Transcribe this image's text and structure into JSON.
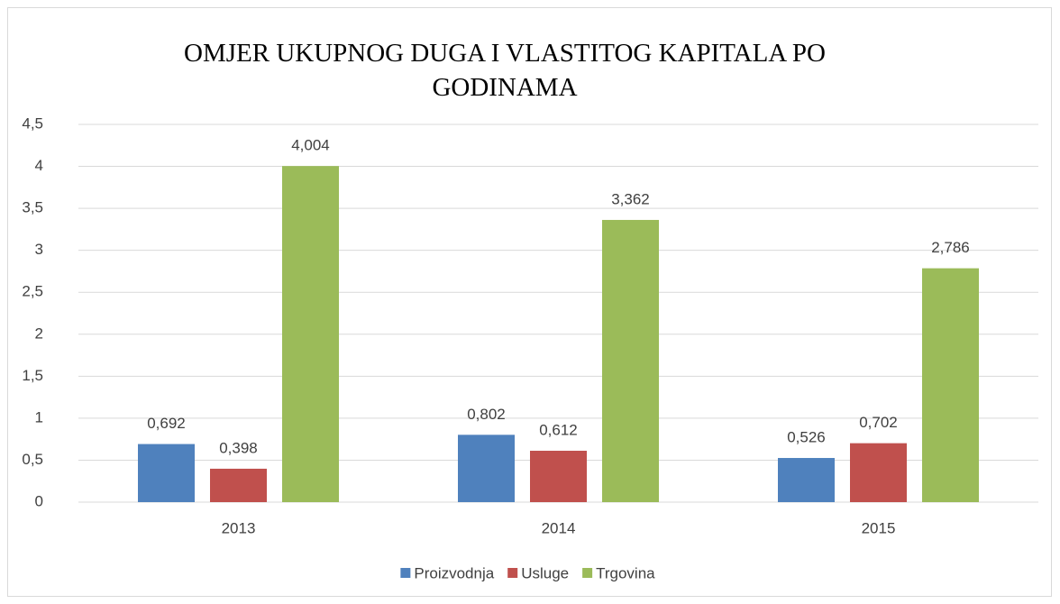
{
  "chart_data": {
    "type": "bar",
    "title": "OMJER UKUPNOG DUGA I VLASTITOG KAPITALA PO GODINAMA",
    "categories": [
      "2013",
      "2014",
      "2015"
    ],
    "series": [
      {
        "name": "Proizvodnja",
        "color": "#4f81bd",
        "values": [
          0.692,
          0.802,
          0.526
        ],
        "value_labels": [
          "0,692",
          "0,802",
          "0,526"
        ]
      },
      {
        "name": "Usluge",
        "color": "#c0504d",
        "values": [
          0.398,
          0.612,
          0.702
        ],
        "value_labels": [
          "0,398",
          "0,612",
          "0,702"
        ]
      },
      {
        "name": "Trgovina",
        "color": "#9bbb59",
        "values": [
          4.004,
          3.362,
          2.786
        ],
        "value_labels": [
          "4,004",
          "3,362",
          "2,786"
        ]
      }
    ],
    "ylim": [
      0,
      4.5
    ],
    "yticks": [
      0,
      {
        "value": 0.5,
        "label": "0,5"
      },
      1,
      {
        "value": 1.5,
        "label": "1,5"
      },
      2,
      {
        "value": 2.5,
        "label": "2,5"
      },
      3,
      {
        "value": 3.5,
        "label": "3,5"
      },
      4,
      {
        "value": 4.5,
        "label": "4,5"
      }
    ],
    "grid": true,
    "legend": "bottom"
  }
}
